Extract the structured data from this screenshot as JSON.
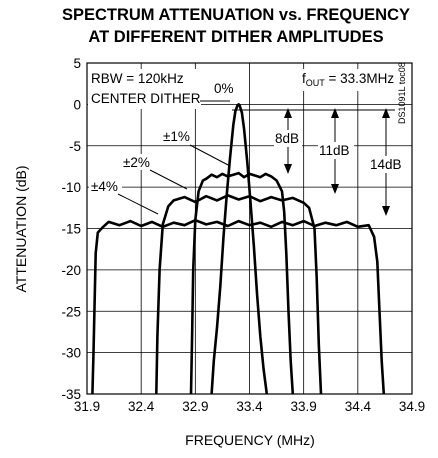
{
  "chart_data": {
    "type": "line",
    "title_line1": "SPECTRUM ATTENUATION vs. FREQUENCY",
    "title_line2": "AT DIFFERENT DITHER AMPLITUDES",
    "xlabel": "FREQUENCY (MHz)",
    "ylabel": "ATTENUATION (dB)",
    "xlim": [
      31.9,
      34.9
    ],
    "ylim": [
      -35,
      5
    ],
    "x_ticks": [
      "31.9",
      "32.4",
      "32.9",
      "33.4",
      "33.9",
      "34.4",
      "34.9"
    ],
    "y_ticks": [
      "5",
      "0",
      "-5",
      "-10",
      "-15",
      "-20",
      "-25",
      "-30",
      "-35"
    ],
    "grid": true,
    "annotations": {
      "rbw": "RBW = 120kHz",
      "center": "CENTER DITHER",
      "fout": "f",
      "fout_sub": "OUT",
      "fout_rest": " = 33.3MHz",
      "code": "DS1091L toc08",
      "zero": "0%",
      "one": "±1%",
      "two": "±2%",
      "four": "±4%",
      "db8": "8dB",
      "db11": "11dB",
      "db14": "14dB"
    },
    "series": [
      {
        "name": "0%",
        "x": [
          33.05,
          33.07,
          33.1,
          33.13,
          33.16,
          33.19,
          33.22,
          33.25,
          33.27,
          33.29,
          33.3,
          33.31,
          33.33,
          33.35,
          33.38,
          33.41,
          33.44,
          33.47,
          33.5,
          33.53,
          33.56
        ],
        "y": [
          -35,
          -31,
          -27,
          -22,
          -16,
          -11,
          -6.5,
          -2.5,
          -0.8,
          -0.1,
          0,
          -0.2,
          -1,
          -3,
          -7,
          -12,
          -17,
          -23,
          -28,
          -32,
          -35
        ]
      },
      {
        "name": "±1%",
        "x": [
          32.86,
          32.87,
          32.88,
          32.9,
          32.93,
          32.97,
          33.0,
          33.05,
          33.1,
          33.15,
          33.2,
          33.25,
          33.3,
          33.35,
          33.4,
          33.45,
          33.5,
          33.55,
          33.6,
          33.65,
          33.7,
          33.72,
          33.74,
          33.76,
          33.78,
          33.8
        ],
        "y": [
          -35,
          -28,
          -20,
          -14,
          -10.5,
          -9.2,
          -9,
          -8.5,
          -8.8,
          -8.4,
          -8.7,
          -8.5,
          -8.3,
          -8.8,
          -8.4,
          -8.6,
          -8.8,
          -8.4,
          -8.7,
          -9.2,
          -10.5,
          -13,
          -18,
          -25,
          -31,
          -35
        ]
      },
      {
        "name": "±2%",
        "x": [
          32.54,
          32.55,
          32.57,
          32.6,
          32.65,
          32.7,
          32.8,
          32.9,
          33.0,
          33.1,
          33.2,
          33.3,
          33.4,
          33.5,
          33.6,
          33.7,
          33.8,
          33.9,
          33.95,
          34.0,
          34.02,
          34.04,
          34.06
        ],
        "y": [
          -35,
          -28,
          -20,
          -14.5,
          -12.3,
          -11.6,
          -11.2,
          -11.8,
          -11.1,
          -11.6,
          -11.0,
          -11.5,
          -11.1,
          -11.7,
          -11.2,
          -11.6,
          -11.3,
          -11.9,
          -12.5,
          -15,
          -21,
          -29,
          -35
        ]
      },
      {
        "name": "±4%",
        "x": [
          31.95,
          31.96,
          31.97,
          31.98,
          32.0,
          32.05,
          32.1,
          32.2,
          32.3,
          32.4,
          32.5,
          32.6,
          32.7,
          32.8,
          32.9,
          33.0,
          33.1,
          33.2,
          33.3,
          33.4,
          33.5,
          33.6,
          33.7,
          33.8,
          33.9,
          34.0,
          34.1,
          34.2,
          34.3,
          34.4,
          34.5,
          34.55,
          34.58,
          34.6,
          34.62,
          34.64
        ],
        "y": [
          -35,
          -30,
          -24,
          -18,
          -15.5,
          -14.8,
          -14.2,
          -14.6,
          -14.1,
          -14.7,
          -14.2,
          -14.8,
          -14.3,
          -14.6,
          -14.0,
          -14.5,
          -14.2,
          -14.7,
          -14.1,
          -14.6,
          -14.3,
          -14.8,
          -14.2,
          -14.6,
          -14.1,
          -14.7,
          -14.3,
          -14.6,
          -14.2,
          -14.8,
          -14.6,
          -16,
          -19,
          -25,
          -31,
          -35
        ]
      }
    ]
  }
}
